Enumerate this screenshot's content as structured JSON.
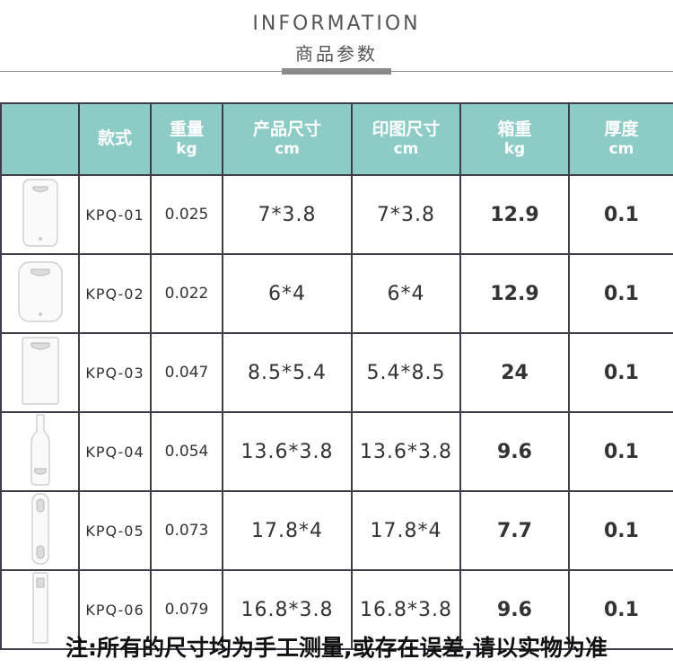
{
  "header": {
    "title_en": "INFORMATION",
    "title_cn": "商品参数"
  },
  "table": {
    "columns": [
      {
        "label": "",
        "unit": ""
      },
      {
        "label": "款式",
        "unit": ""
      },
      {
        "label": "重量",
        "unit": "kg"
      },
      {
        "label": "产品尺寸",
        "unit": "cm"
      },
      {
        "label": "印图尺寸",
        "unit": "cm"
      },
      {
        "label": "箱重",
        "unit": "kg"
      },
      {
        "label": "厚度",
        "unit": "cm"
      }
    ],
    "rows": [
      {
        "icon": "opener-rounded-rect-icon",
        "model": "KPQ-01",
        "weight": "0.025",
        "size": "7*3.8",
        "print": "7*3.8",
        "box": "12.9",
        "thick": "0.1"
      },
      {
        "icon": "opener-rounded-rect-icon",
        "model": "KPQ-02",
        "weight": "0.022",
        "size": "6*4",
        "print": "6*4",
        "box": "12.9",
        "thick": "0.1"
      },
      {
        "icon": "opener-card-icon",
        "model": "KPQ-03",
        "weight": "0.047",
        "size": "8.5*5.4",
        "print": "5.4*8.5",
        "box": "24",
        "thick": "0.1"
      },
      {
        "icon": "opener-bottle-icon",
        "model": "KPQ-04",
        "weight": "0.054",
        "size": "13.6*3.8",
        "print": "13.6*3.8",
        "box": "9.6",
        "thick": "0.1"
      },
      {
        "icon": "opener-bar-icon",
        "model": "KPQ-05",
        "weight": "0.073",
        "size": "17.8*4",
        "print": "17.8*4",
        "box": "7.7",
        "thick": "0.1"
      },
      {
        "icon": "opener-long-bar-icon",
        "model": "KPQ-06",
        "weight": "0.079",
        "size": "16.8*3.8",
        "print": "16.8*3.8",
        "box": "9.6",
        "thick": "0.1"
      }
    ]
  },
  "footnote": "注:所有的尺寸均为手工测量,或存在误差,请以实物为准"
}
